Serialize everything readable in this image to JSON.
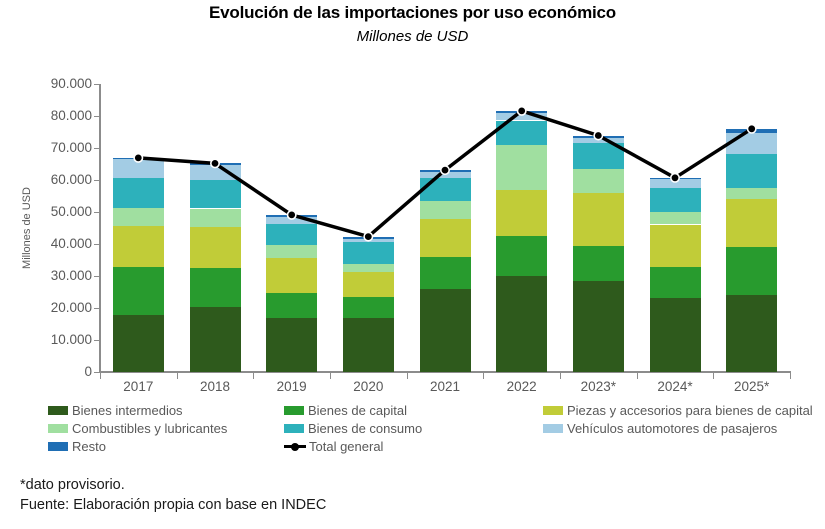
{
  "header": {
    "title": "Evolución de las importaciones por uso económico",
    "subtitle": "Millones de USD"
  },
  "footer": {
    "note": "*dato provisorio.",
    "source": "Fuente: Elaboración propia con base en INDEC"
  },
  "chart_data": {
    "type": "bar",
    "subtype": "stacked-bar-with-line",
    "title": "Evolución de las importaciones por uso económico",
    "subtitle": "Millones de USD",
    "ylabel": "Millones de USD",
    "xlabel": "",
    "ylim": [
      0,
      90000
    ],
    "ytick_step": 10000,
    "grid": false,
    "categories": [
      "2017",
      "2018",
      "2019",
      "2020",
      "2021",
      "2022",
      "2023*",
      "2024*",
      "2025*"
    ],
    "series": [
      {
        "name": "Bienes intermedios",
        "color": "#2e5a1c",
        "values": [
          17800,
          20200,
          17000,
          16800,
          25900,
          30000,
          28500,
          23000,
          24000
        ]
      },
      {
        "name": "Bienes de capital",
        "color": "#289b2e",
        "values": [
          14900,
          12300,
          7800,
          6600,
          10000,
          12500,
          11000,
          9700,
          15100
        ]
      },
      {
        "name": "Piezas y accesorios para bienes de capital",
        "color": "#c1cc38",
        "values": [
          12900,
          12800,
          10900,
          7800,
          11900,
          14400,
          16400,
          13400,
          15100
        ]
      },
      {
        "name": "Combustibles y lubricantes",
        "color": "#a0dfa0",
        "values": [
          5700,
          5800,
          4100,
          2500,
          5600,
          13900,
          7600,
          4000,
          3300
        ]
      },
      {
        "name": "Bienes de consumo",
        "color": "#2db1bb",
        "values": [
          9300,
          8800,
          6300,
          7000,
          7200,
          7800,
          8200,
          7500,
          10700
        ]
      },
      {
        "name": "Vehículos automotores de pasajeros",
        "color": "#a3cce4",
        "values": [
          6000,
          4800,
          2400,
          1000,
          1900,
          2300,
          1400,
          2600,
          6600
        ]
      },
      {
        "name": "Resto",
        "color": "#1f6eb4",
        "values": [
          300,
          500,
          600,
          600,
          600,
          700,
          800,
          500,
          1200
        ]
      }
    ],
    "line_series": {
      "name": "Total general",
      "color": "#000000",
      "values": [
        66900,
        65200,
        49100,
        42300,
        63100,
        81600,
        73900,
        60700,
        76000
      ]
    },
    "legend": {
      "position": "bottom",
      "order": [
        "Bienes intermedios",
        "Bienes de capital",
        "Piezas y accesorios para bienes de capital",
        "Combustibles y lubricantes",
        "Bienes de consumo",
        "Vehículos automotores de pasajeros",
        "Resto",
        "Total general"
      ]
    }
  }
}
